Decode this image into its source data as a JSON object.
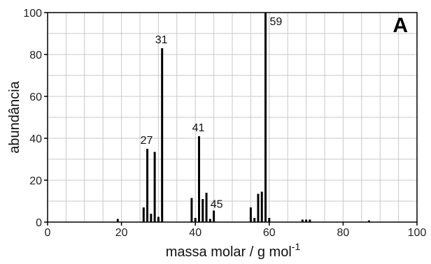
{
  "chart_data": {
    "type": "bar",
    "panel_label": "A",
    "xlabel": "massa molar / g mol",
    "xlabel_superscript": "-1",
    "ylabel": "abundância",
    "xlim": [
      0,
      100
    ],
    "ylim": [
      0,
      100
    ],
    "xticks": [
      0,
      20,
      40,
      60,
      80,
      100
    ],
    "yticks": [
      0,
      20,
      40,
      60,
      80,
      100
    ],
    "grid": true,
    "colors": {
      "bars": "#000000",
      "grid": "#c8c8c8",
      "axes": "#000000"
    },
    "peaks": [
      {
        "x": 19,
        "y": 1.5
      },
      {
        "x": 26,
        "y": 7
      },
      {
        "x": 27,
        "y": 35
      },
      {
        "x": 28,
        "y": 4
      },
      {
        "x": 29,
        "y": 33.5
      },
      {
        "x": 30,
        "y": 2.5
      },
      {
        "x": 31,
        "y": 83
      },
      {
        "x": 39,
        "y": 11.5
      },
      {
        "x": 40,
        "y": 2
      },
      {
        "x": 41,
        "y": 41
      },
      {
        "x": 42,
        "y": 11
      },
      {
        "x": 43,
        "y": 14
      },
      {
        "x": 44,
        "y": 1.5
      },
      {
        "x": 45,
        "y": 5.5
      },
      {
        "x": 55,
        "y": 7
      },
      {
        "x": 56,
        "y": 2
      },
      {
        "x": 57,
        "y": 13.5
      },
      {
        "x": 58,
        "y": 14.5
      },
      {
        "x": 59,
        "y": 100
      },
      {
        "x": 60,
        "y": 2
      },
      {
        "x": 69,
        "y": 1.2
      },
      {
        "x": 70,
        "y": 1.2
      },
      {
        "x": 71,
        "y": 1.2
      },
      {
        "x": 87,
        "y": 0.8
      }
    ],
    "annotations": [
      {
        "text": "27",
        "x": 27
      },
      {
        "text": "31",
        "x": 31
      },
      {
        "text": "41",
        "x": 41
      },
      {
        "text": "45",
        "x": 45
      },
      {
        "text": "59",
        "x": 59
      }
    ]
  }
}
